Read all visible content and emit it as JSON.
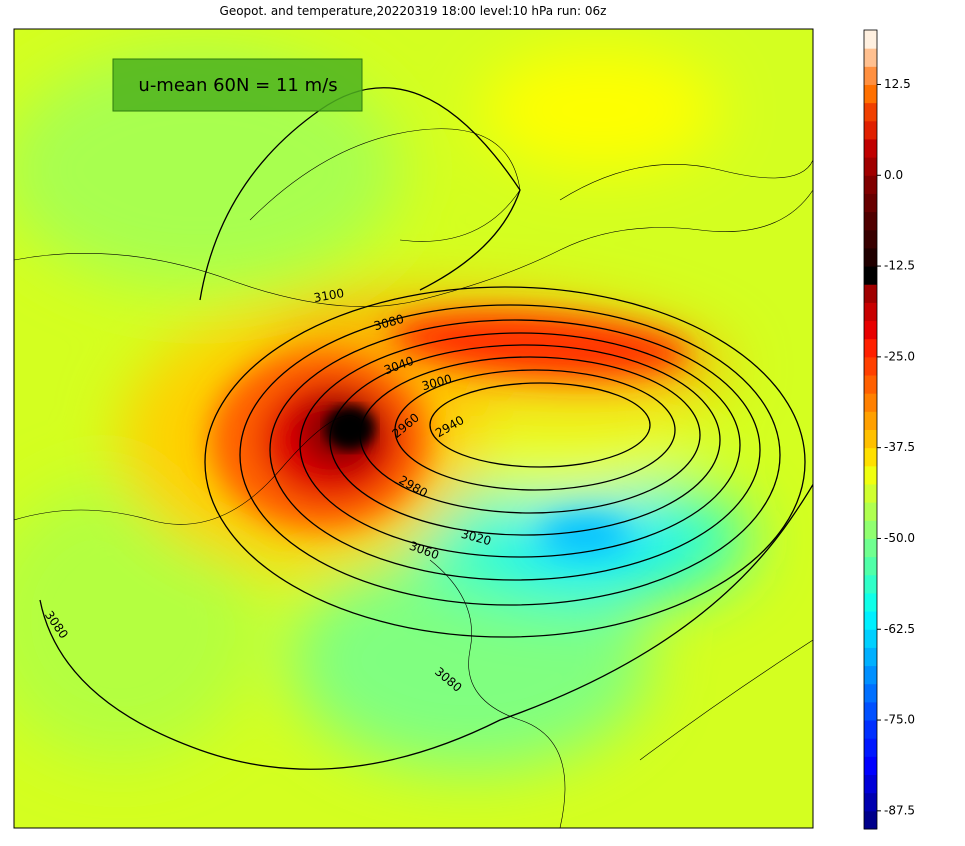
{
  "title": "Geopot. and temperature,20220319 18:00 level:10 hPa run: 06z",
  "annotation": "u-mean 60N = 11 m/s",
  "map": {
    "contour_labels": [
      3100,
      3080,
      3040,
      3000,
      2960,
      2940,
      2980,
      3020,
      3060,
      3080,
      3080
    ]
  },
  "colorbar": {
    "lim": [
      -90,
      20
    ],
    "ticks": [
      12.5,
      {
        "value": 0,
        "label": "0.0"
      },
      -12.5,
      {
        "value": -25,
        "label": "-25.0"
      },
      -37.5,
      {
        "value": -50,
        "label": "-50.0"
      },
      -62.5,
      {
        "value": -75,
        "label": "-75.0"
      },
      -87.5
    ],
    "colors": [
      "#00008b",
      "#0000b0",
      "#0000d8",
      "#0000ff",
      "#0018ff",
      "#0030ff",
      "#0050ff",
      "#0070ff",
      "#0090ff",
      "#00b0ff",
      "#00d0ff",
      "#00f0ff",
      "#10ffe8",
      "#30ffc8",
      "#50ffa8",
      "#70ff90",
      "#90ff70",
      "#b0ff50",
      "#d0ff30",
      "#f0ff10",
      "#ffe000",
      "#ffc000",
      "#ffa000",
      "#ff8000",
      "#ff6000",
      "#ff4000",
      "#ff2000",
      "#e80000",
      "#c80000",
      "#a00000",
      "#000000",
      "#200000",
      "#380000",
      "#500000",
      "#680000",
      "#800000",
      "#a00000",
      "#c00000",
      "#e02000",
      "#f04000",
      "#ff7000",
      "#ff9040",
      "#ffc090",
      "#fff0e0"
    ]
  }
}
